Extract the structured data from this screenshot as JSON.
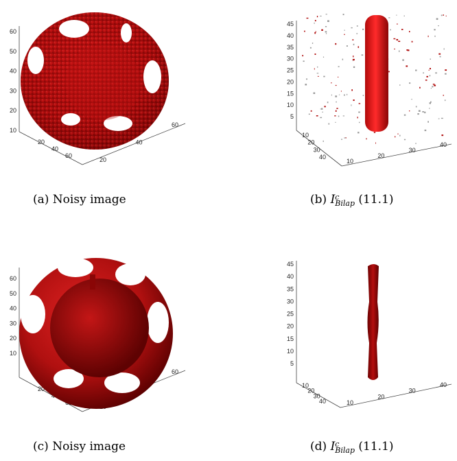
{
  "panels": [
    {
      "id": "a",
      "caption": "(a) Noisy image",
      "z_ticks": [
        "10",
        "20",
        "30",
        "40",
        "50",
        "60"
      ],
      "x_ticks": [
        "20",
        "40",
        "60"
      ],
      "y_ticks": [
        "20",
        "40",
        "60"
      ]
    },
    {
      "id": "b",
      "caption_prefix": "(b)",
      "caption_sym": "I",
      "caption_sup": "c",
      "caption_sub": "Bilap",
      "caption_value": "(11.1)",
      "z_ticks": [
        "5",
        "10",
        "15",
        "20",
        "25",
        "30",
        "35",
        "40",
        "45"
      ],
      "x_ticks": [
        "10",
        "20",
        "30",
        "40"
      ],
      "y_ticks": [
        "10",
        "20",
        "30",
        "40"
      ]
    },
    {
      "id": "c",
      "caption": "(c) Noisy image",
      "z_ticks": [
        "10",
        "20",
        "30",
        "40",
        "50",
        "60"
      ],
      "x_ticks": [
        "20",
        "40",
        "60"
      ],
      "y_ticks": [
        "20",
        "40",
        "60"
      ]
    },
    {
      "id": "d",
      "caption_prefix": "(d)",
      "caption_sym": "I",
      "caption_sup": "c",
      "caption_sub": "Bilap",
      "caption_value": "(11.1)",
      "z_ticks": [
        "5",
        "10",
        "15",
        "20",
        "25",
        "30",
        "35",
        "40",
        "45"
      ],
      "x_ticks": [
        "10",
        "20",
        "30",
        "40"
      ],
      "y_ticks": [
        "10",
        "20",
        "30",
        "40"
      ]
    }
  ],
  "colors": {
    "surface": "#b01010",
    "surface_light": "#e02020",
    "surface_dark": "#5a0000",
    "axis": "#444444"
  }
}
